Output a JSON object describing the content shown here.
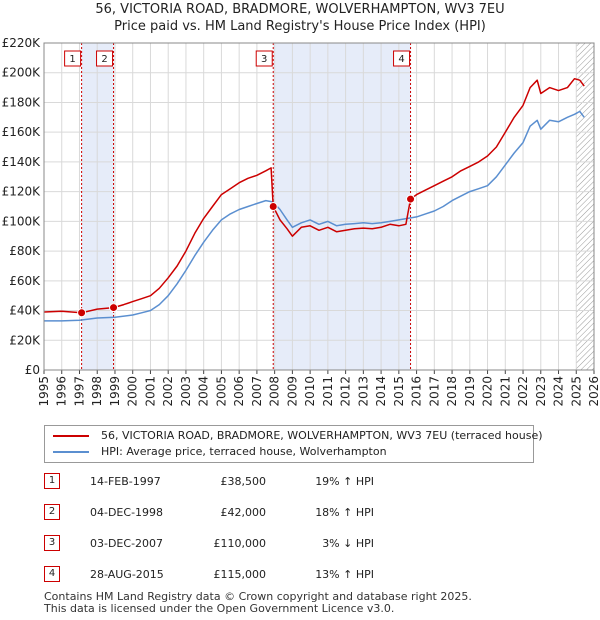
{
  "header": {
    "title": "56, VICTORIA ROAD, BRADMORE, WOLVERHAMPTON, WV3 7EU",
    "subtitle": "Price paid vs. HM Land Registry's House Price Index (HPI)"
  },
  "chart_data": {
    "type": "line",
    "title": "56, VICTORIA ROAD, BRADMORE, WOLVERHAMPTON, WV3 7EU",
    "subtitle": "Price paid vs. HM Land Registry's House Price Index (HPI)",
    "xlabel": "",
    "ylabel": "",
    "xlim": [
      1995,
      2026
    ],
    "ylim": [
      0,
      220000
    ],
    "x_ticks": [
      1995,
      1996,
      1997,
      1998,
      1999,
      2000,
      2001,
      2002,
      2003,
      2004,
      2005,
      2006,
      2007,
      2008,
      2009,
      2010,
      2011,
      2012,
      2013,
      2014,
      2015,
      2016,
      2017,
      2018,
      2019,
      2020,
      2021,
      2022,
      2023,
      2024,
      2025,
      2026
    ],
    "x_tick_labels": [
      "1995",
      "1996",
      "1997",
      "1998",
      "1999",
      "2000",
      "2001",
      "2002",
      "2003",
      "2004",
      "2005",
      "2006",
      "2007",
      "2008",
      "2009",
      "2010",
      "2011",
      "2012",
      "2013",
      "2014",
      "2015",
      "2016",
      "2017",
      "2018",
      "2019",
      "2020",
      "2021",
      "2022",
      "2023",
      "2024",
      "2025",
      "2026"
    ],
    "y_ticks": [
      0,
      20000,
      40000,
      60000,
      80000,
      100000,
      120000,
      140000,
      160000,
      180000,
      200000,
      220000
    ],
    "y_tick_labels": [
      "£0",
      "£20K",
      "£40K",
      "£60K",
      "£80K",
      "£100K",
      "£120K",
      "£140K",
      "£160K",
      "£180K",
      "£200K",
      "£220K"
    ],
    "grid": true,
    "legend_position": "bottom",
    "series": [
      {
        "name": "56, VICTORIA ROAD, BRADMORE, WOLVERHAMPTON, WV3 7EU (terraced house)",
        "color": "#cc0000",
        "x": [
          1995.0,
          1996.0,
          1997.12,
          1998.0,
          1998.92,
          1999.5,
          2000.0,
          2000.5,
          2001.0,
          2001.5,
          2002.0,
          2002.5,
          2003.0,
          2003.5,
          2004.0,
          2004.5,
          2005.0,
          2005.5,
          2006.0,
          2006.5,
          2007.0,
          2007.5,
          2007.8,
          2007.92,
          2008.3,
          2008.7,
          2009.0,
          2009.5,
          2010.0,
          2010.5,
          2011.0,
          2011.5,
          2012.0,
          2012.5,
          2013.0,
          2013.5,
          2014.0,
          2014.5,
          2015.0,
          2015.4,
          2015.66,
          2016.0,
          2016.5,
          2017.0,
          2017.5,
          2018.0,
          2018.5,
          2019.0,
          2019.5,
          2020.0,
          2020.5,
          2021.0,
          2021.5,
          2022.0,
          2022.4,
          2022.8,
          2023.0,
          2023.5,
          2024.0,
          2024.5,
          2024.9,
          2025.2,
          2025.45
        ],
        "y": [
          39000,
          39500,
          38500,
          41000,
          42000,
          44000,
          46000,
          48000,
          50000,
          55000,
          62000,
          70000,
          80000,
          92000,
          102000,
          110000,
          118000,
          122000,
          126000,
          129000,
          131000,
          134000,
          136000,
          110000,
          101000,
          95000,
          90000,
          96000,
          97000,
          94000,
          96000,
          93000,
          94000,
          95000,
          95500,
          95000,
          96000,
          98000,
          97000,
          98000,
          115000,
          118000,
          121000,
          124000,
          127000,
          130000,
          134000,
          137000,
          140000,
          144000,
          150000,
          160000,
          170000,
          178000,
          190000,
          195000,
          186000,
          190000,
          188000,
          190000,
          196000,
          195000,
          191000
        ]
      },
      {
        "name": "HPI: Average price, terraced house, Wolverhampton",
        "color": "#5b8fd0",
        "x": [
          1995.0,
          1996.0,
          1997.0,
          1998.0,
          1999.0,
          2000.0,
          2000.5,
          2001.0,
          2001.5,
          2002.0,
          2002.5,
          2003.0,
          2003.5,
          2004.0,
          2004.5,
          2005.0,
          2005.5,
          2006.0,
          2006.5,
          2007.0,
          2007.5,
          2007.92,
          2008.3,
          2008.7,
          2009.0,
          2009.5,
          2010.0,
          2010.5,
          2011.0,
          2011.5,
          2012.0,
          2012.5,
          2013.0,
          2013.5,
          2014.0,
          2014.5,
          2015.0,
          2015.5,
          2016.0,
          2016.5,
          2017.0,
          2017.5,
          2018.0,
          2018.5,
          2019.0,
          2019.5,
          2020.0,
          2020.5,
          2021.0,
          2021.5,
          2022.0,
          2022.4,
          2022.8,
          2023.0,
          2023.5,
          2024.0,
          2024.5,
          2024.9,
          2025.2,
          2025.45
        ],
        "y": [
          33000,
          33000,
          33500,
          35000,
          35500,
          37000,
          38500,
          40000,
          44000,
          50000,
          58000,
          67000,
          77000,
          86000,
          94000,
          101000,
          105000,
          108000,
          110000,
          112000,
          114000,
          113000,
          108000,
          101000,
          96000,
          99000,
          101000,
          98000,
          100000,
          97000,
          98000,
          98500,
          99000,
          98500,
          99000,
          100000,
          101000,
          102000,
          103000,
          105000,
          107000,
          110000,
          114000,
          117000,
          120000,
          122000,
          124000,
          130000,
          138000,
          146000,
          153000,
          164000,
          168000,
          162000,
          168000,
          167000,
          170000,
          172000,
          174000,
          170000
        ]
      }
    ],
    "transactions": [
      {
        "n": "1",
        "x": 1997.12,
        "price": 38500
      },
      {
        "n": "2",
        "x": 1998.92,
        "price": 42000
      },
      {
        "n": "3",
        "x": 2007.92,
        "price": 110000
      },
      {
        "n": "4",
        "x": 2015.66,
        "price": 115000
      }
    ],
    "shaded_regions": [
      [
        1997.12,
        1998.92
      ],
      [
        2007.92,
        2015.66
      ]
    ],
    "hatch_from": 2025.0
  },
  "legend": {
    "items": [
      {
        "label": "56, VICTORIA ROAD, BRADMORE, WOLVERHAMPTON, WV3 7EU (terraced house)",
        "color": "#cc0000"
      },
      {
        "label": "HPI: Average price, terraced house, Wolverhampton",
        "color": "#5b8fd0"
      }
    ]
  },
  "table": {
    "rows": [
      {
        "n": "1",
        "date": "14-FEB-1997",
        "price": "£38,500",
        "hpi": "19% ↑ HPI"
      },
      {
        "n": "2",
        "date": "04-DEC-1998",
        "price": "£42,000",
        "hpi": "18% ↑ HPI"
      },
      {
        "n": "3",
        "date": "03-DEC-2007",
        "price": "£110,000",
        "hpi": "3% ↓ HPI"
      },
      {
        "n": "4",
        "date": "28-AUG-2015",
        "price": "£115,000",
        "hpi": "13% ↑ HPI"
      }
    ]
  },
  "footer": {
    "line1": "Contains HM Land Registry data © Crown copyright and database right 2025.",
    "line2": "This data is licensed under the Open Government Licence v3.0."
  }
}
